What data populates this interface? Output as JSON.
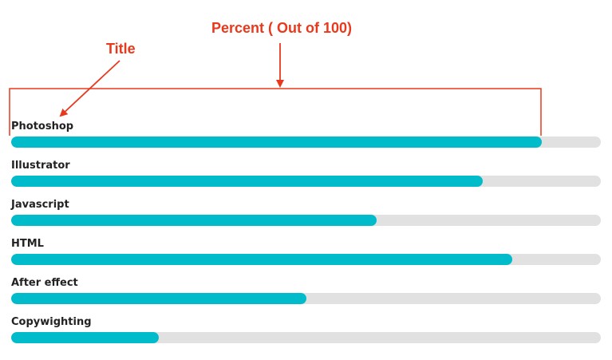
{
  "annotations": {
    "percent_label": "Percent ( Out of 100)",
    "title_label": "Title",
    "color": "#e8391d"
  },
  "colors": {
    "fill": "#00bcca",
    "track": "#e1e1e1",
    "label": "#222222"
  },
  "skills": [
    {
      "title": "Photoshop",
      "percent": 90
    },
    {
      "title": "Illustrator",
      "percent": 80
    },
    {
      "title": "Javascript",
      "percent": 62
    },
    {
      "title": "HTML",
      "percent": 85
    },
    {
      "title": "After effect",
      "percent": 50
    },
    {
      "title": "Copywighting",
      "percent": 25
    }
  ]
}
